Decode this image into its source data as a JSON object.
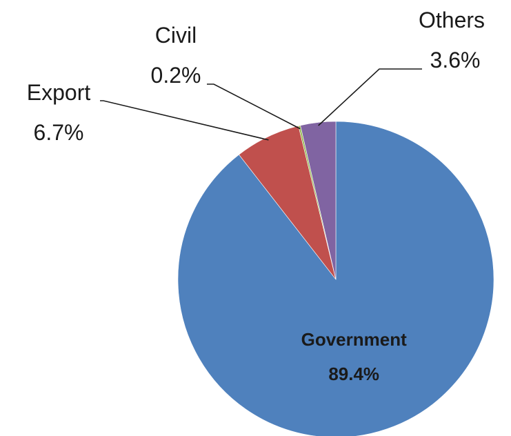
{
  "chart_data": {
    "type": "pie",
    "title": "",
    "start_angle_deg": 0,
    "direction": "clockwise",
    "legend": "none",
    "slices": [
      {
        "name": "Government",
        "value": 89.4,
        "label": "89.4%",
        "color": "#4f81bd",
        "label_position": "inside"
      },
      {
        "name": "Export",
        "value": 6.7,
        "label": "6.7%",
        "color": "#c0504d",
        "label_position": "outside-left"
      },
      {
        "name": "Civil",
        "value": 0.2,
        "label": "0.2%",
        "color": "#9bbb59",
        "label_position": "outside-top"
      },
      {
        "name": "Others",
        "value": 3.6,
        "label": "3.6%",
        "color": "#8064a2",
        "label_position": "outside-top-right"
      }
    ]
  }
}
